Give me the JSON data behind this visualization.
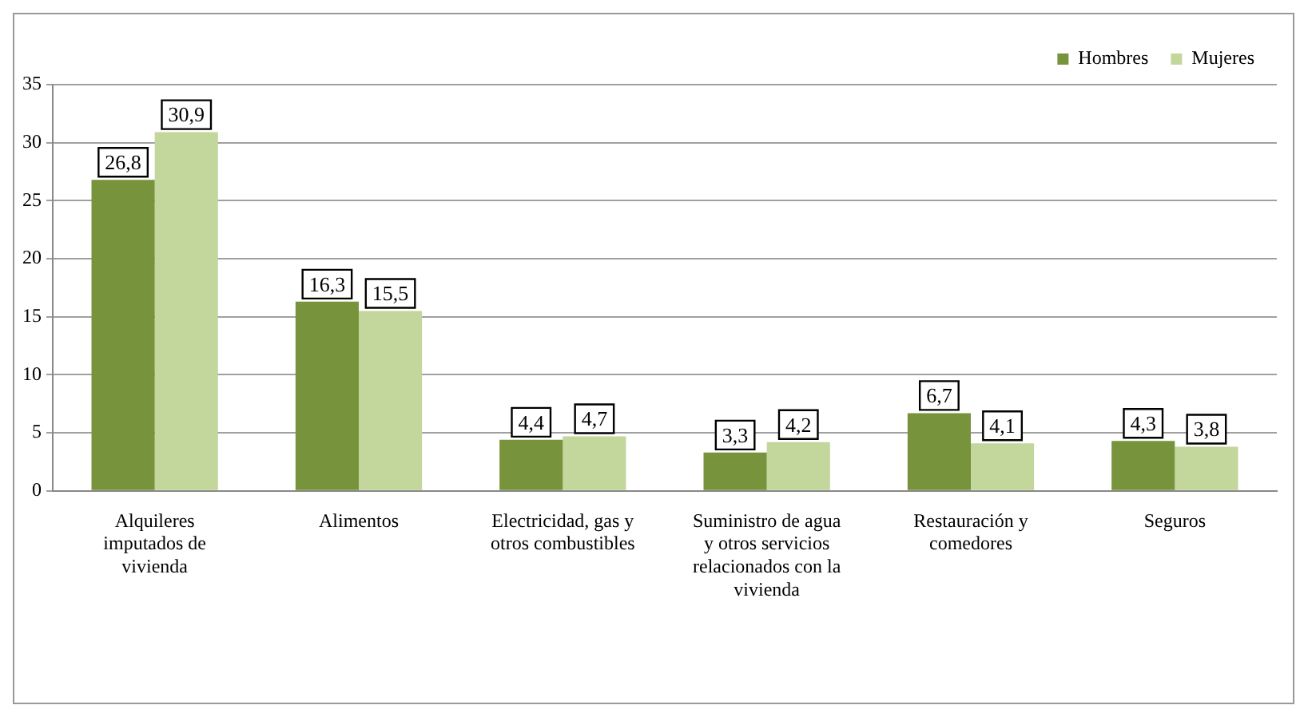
{
  "chart_data": {
    "type": "bar",
    "categories": [
      "Alquileres imputados de vivienda",
      "Alimentos",
      "Electricidad, gas y otros combustibles",
      "Suministro de agua y otros servicios relacionados con la vivienda",
      "Restauración y comedores",
      "Seguros"
    ],
    "series": [
      {
        "name": "Hombres",
        "color": "#77933c",
        "values": [
          26.8,
          16.3,
          4.4,
          3.3,
          6.7,
          4.3
        ],
        "value_labels": [
          "26,8",
          "16,3",
          "4,4",
          "3,3",
          "6,7",
          "4,3"
        ]
      },
      {
        "name": "Mujeres",
        "color": "#c3d69b",
        "values": [
          30.9,
          15.5,
          4.7,
          4.2,
          4.1,
          3.8
        ],
        "value_labels": [
          "30,9",
          "15,5",
          "4,7",
          "4,2",
          "4,1",
          "3,8"
        ]
      }
    ],
    "ylim": [
      0,
      35
    ],
    "yticks": [
      0,
      5,
      10,
      15,
      20,
      25,
      30,
      35
    ],
    "grid": "y",
    "legend": "top right"
  }
}
